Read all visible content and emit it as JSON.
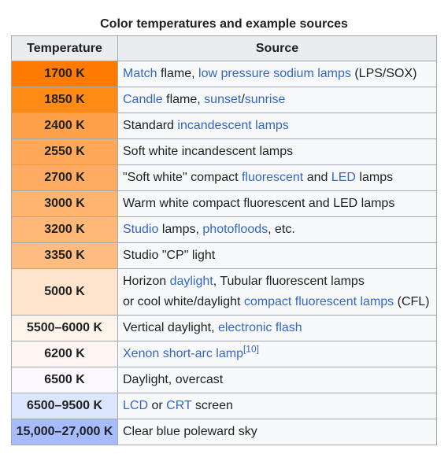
{
  "caption": "Color temperatures and example sources",
  "headers": {
    "temperature": "Temperature",
    "source": "Source"
  },
  "colors": {
    "link": "#3366cc",
    "header_bg": "#eaecf0",
    "border": "#a2a9b1",
    "row_bg": "#f8f9fa"
  },
  "rows": [
    {
      "temp": "1700 K",
      "color": "#ff7a00",
      "source": [
        [
          {
            "t": "Match",
            "link": true
          },
          {
            "t": " flame, "
          },
          {
            "t": "low pressure sodium lamps",
            "link": true
          },
          {
            "t": " (LPS/SOX)"
          }
        ]
      ]
    },
    {
      "temp": "1850 K",
      "color": "#ff8a14",
      "source": [
        [
          {
            "t": "Candle",
            "link": true
          },
          {
            "t": " flame, "
          },
          {
            "t": "sunset",
            "link": true
          },
          {
            "t": "/"
          },
          {
            "t": "sunrise",
            "link": true
          }
        ]
      ]
    },
    {
      "temp": "2400 K",
      "color": "#ffa04a",
      "source": [
        [
          {
            "t": "Standard "
          },
          {
            "t": "incandescent lamps",
            "link": true
          }
        ]
      ]
    },
    {
      "temp": "2550 K",
      "color": "#ffa85a",
      "source": [
        [
          {
            "t": "Soft white incandescent lamps"
          }
        ]
      ]
    },
    {
      "temp": "2700 K",
      "color": "#ffac62",
      "source": [
        [
          {
            "t": "\"Soft white\" compact "
          },
          {
            "t": "fluorescent",
            "link": true
          },
          {
            "t": " and "
          },
          {
            "t": "LED",
            "link": true
          },
          {
            "t": " lamps"
          }
        ]
      ]
    },
    {
      "temp": "3000 K",
      "color": "#ffb46f",
      "source": [
        [
          {
            "t": "Warm white compact fluorescent and LED lamps"
          }
        ]
      ]
    },
    {
      "temp": "3200 K",
      "color": "#ffb878",
      "source": [
        [
          {
            "t": "Studio",
            "link": true
          },
          {
            "t": " lamps, "
          },
          {
            "t": "photofloods",
            "link": true
          },
          {
            "t": ", etc."
          }
        ]
      ]
    },
    {
      "temp": "3350 K",
      "color": "#ffbc80",
      "source": [
        [
          {
            "t": "Studio \"CP\" light"
          }
        ]
      ]
    },
    {
      "temp": "5000 K",
      "color": "#ffe4cd",
      "source": [
        [
          {
            "t": "Horizon "
          },
          {
            "t": "daylight",
            "link": true
          },
          {
            "t": ", Tubular fluorescent lamps"
          }
        ],
        [
          {
            "t": "or cool white/daylight "
          },
          {
            "t": "compact fluorescent lamps",
            "link": true
          },
          {
            "t": " (CFL)"
          }
        ]
      ]
    },
    {
      "temp": "5500–6000 K",
      "color": "#fff4ea",
      "source": [
        [
          {
            "t": "Vertical daylight, "
          },
          {
            "t": "electronic flash",
            "link": true
          }
        ]
      ]
    },
    {
      "temp": "6200 K",
      "color": "#fff6f4",
      "source": [
        [
          {
            "t": "Xenon short-arc lamp",
            "link": true
          },
          {
            "t": "[10]",
            "link": true,
            "sup": true
          }
        ]
      ]
    },
    {
      "temp": "6500 K",
      "color": "#fcf8ff",
      "source": [
        [
          {
            "t": "Daylight, overcast"
          }
        ]
      ]
    },
    {
      "temp": "6500–9500 K",
      "color": "#dde6ff",
      "source": [
        [
          {
            "t": "LCD",
            "link": true
          },
          {
            "t": " or "
          },
          {
            "t": "CRT",
            "link": true
          },
          {
            "t": " screen"
          }
        ]
      ]
    },
    {
      "temp": "15,000–27,000 K",
      "color": "#a6bcff",
      "source": [
        [
          {
            "t": "Clear blue poleward sky"
          }
        ]
      ]
    }
  ]
}
